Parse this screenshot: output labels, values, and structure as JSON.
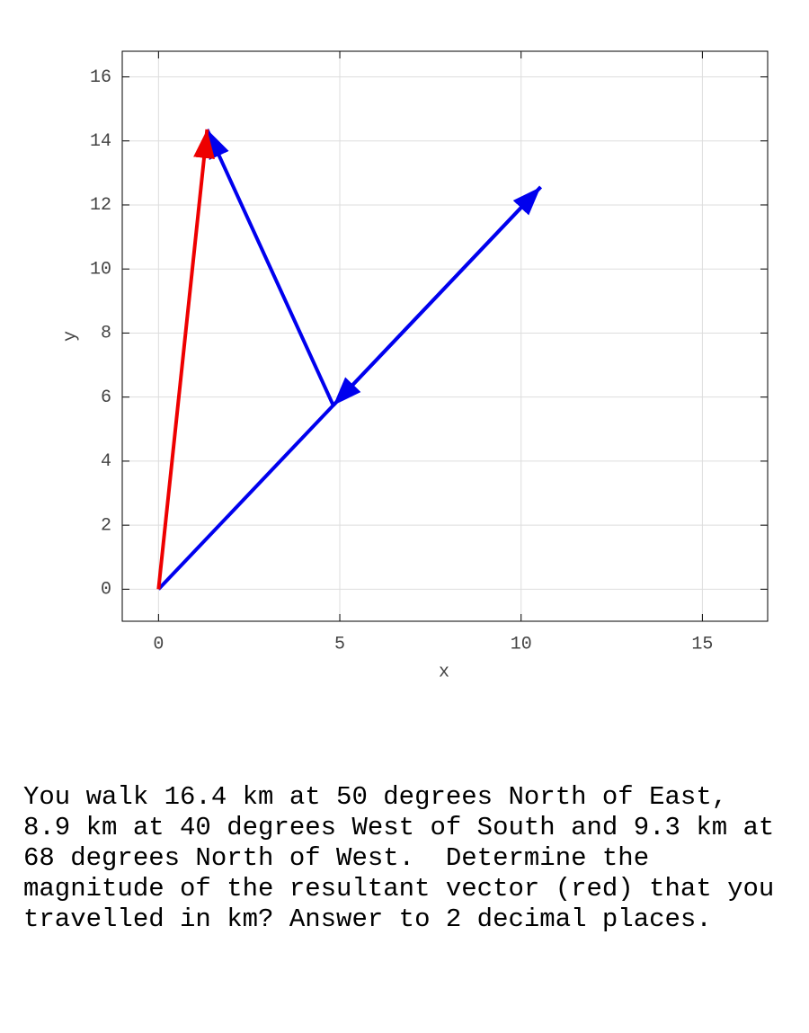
{
  "chart_data": {
    "type": "vector",
    "x_label": "x",
    "y_label": "y",
    "xlim": [
      -1,
      16.8
    ],
    "ylim": [
      -1,
      16.8
    ],
    "xticks": [
      0,
      5,
      10,
      15
    ],
    "yticks": [
      0,
      2,
      4,
      6,
      8,
      10,
      12,
      14,
      16
    ],
    "grid": true,
    "vectors": [
      {
        "color": "#0000ee",
        "x": [
          0,
          10.54
        ],
        "y": [
          0,
          12.56
        ]
      },
      {
        "color": "#0000ee",
        "x": [
          10.54,
          4.82
        ],
        "y": [
          12.56,
          5.74
        ]
      },
      {
        "color": "#0000ee",
        "x": [
          4.82,
          1.34
        ],
        "y": [
          5.74,
          14.36
        ]
      },
      {
        "color": "#ee0000",
        "x": [
          0,
          1.34
        ],
        "y": [
          0,
          14.36
        ]
      }
    ]
  },
  "question": "You walk 16.4 km at 50 degrees North of East, 8.9 km at 40 degrees West of South and 9.3 km at 68 degrees North of West.  Determine the magnitude of the resultant vector (red) that you travelled in km? Answer to 2 decimal places."
}
